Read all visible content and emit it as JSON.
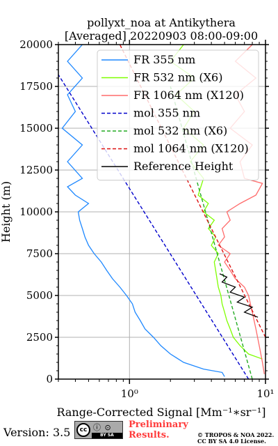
{
  "title_line1": "pollyxt_noa at Antikythera",
  "title_line2": "[Averaged] 20220903 08:00-09:00",
  "footer": {
    "version": "Version: 3.5",
    "cc_label": "cc",
    "cc_strip": "BY  SA",
    "preliminary_line1": "Preliminary",
    "preliminary_line2": "Results.",
    "copyright_line1": "© TROPOS & NOA 2022.",
    "copyright_line2": "CC BY SA 4.0 License."
  },
  "chart_data": {
    "type": "line",
    "xlabel": "Range-Corrected Signal [Mm⁻¹∗sr⁻¹]",
    "ylabel": "Height (m)",
    "x_scale": "log",
    "xlim": [
      0.3,
      10
    ],
    "ylim": [
      0,
      20000
    ],
    "x_ticks": [
      1,
      10
    ],
    "x_tick_labels": [
      "10⁰",
      "10¹"
    ],
    "y_ticks": [
      0,
      2500,
      5000,
      7500,
      10000,
      12500,
      15000,
      17500,
      20000
    ],
    "y_tick_labels": [
      "0",
      "2500",
      "5000",
      "7500",
      "10000",
      "12500",
      "15000",
      "17500",
      "20000"
    ],
    "grid": true,
    "legend_position": "top-right",
    "series": [
      {
        "name": "FR 355 nm",
        "color": "#1e88ff",
        "style": "solid",
        "points": [
          [
            5.0,
            150
          ],
          [
            4.8,
            400
          ],
          [
            3.5,
            600
          ],
          [
            2.5,
            1000
          ],
          [
            2.0,
            1500
          ],
          [
            1.7,
            2000
          ],
          [
            1.5,
            2500
          ],
          [
            1.3,
            3000
          ],
          [
            1.2,
            3500
          ],
          [
            1.1,
            4000
          ],
          [
            1.05,
            4500
          ],
          [
            0.95,
            5000
          ],
          [
            0.85,
            5500
          ],
          [
            0.75,
            6000
          ],
          [
            0.68,
            6500
          ],
          [
            0.62,
            7000
          ],
          [
            0.55,
            7500
          ],
          [
            0.5,
            8000
          ],
          [
            0.47,
            8500
          ],
          [
            0.45,
            9000
          ],
          [
            0.43,
            9500
          ],
          [
            0.42,
            10000
          ],
          [
            0.5,
            10500
          ],
          [
            0.4,
            11000
          ],
          [
            0.35,
            11500
          ],
          [
            0.45,
            12000
          ],
          [
            0.35,
            13000
          ],
          [
            0.45,
            14000
          ],
          [
            0.32,
            15000
          ],
          [
            0.4,
            16000
          ],
          [
            0.35,
            17000
          ],
          [
            0.45,
            18000
          ],
          [
            0.35,
            19000
          ],
          [
            0.45,
            20000
          ]
        ]
      },
      {
        "name": "FR 532 nm (X6)",
        "color": "#7fff00",
        "style": "solid",
        "points": [
          [
            9.5,
            1200
          ],
          [
            7.5,
            1500
          ],
          [
            6.5,
            2000
          ],
          [
            5.8,
            2500
          ],
          [
            5.5,
            3000
          ],
          [
            5.2,
            3500
          ],
          [
            5.0,
            4000
          ],
          [
            4.8,
            4500
          ],
          [
            4.7,
            5000
          ],
          [
            4.5,
            5500
          ],
          [
            4.4,
            6000
          ],
          [
            4.3,
            6500
          ],
          [
            4.2,
            7000
          ],
          [
            4.5,
            7500
          ],
          [
            4.0,
            8000
          ],
          [
            4.3,
            8500
          ],
          [
            3.8,
            9000
          ],
          [
            4.2,
            9500
          ],
          [
            3.5,
            10000
          ],
          [
            3.8,
            10500
          ],
          [
            3.2,
            11000
          ],
          [
            3.5,
            12000
          ],
          [
            2.8,
            13000
          ],
          [
            3.5,
            14000
          ],
          [
            2.5,
            15000
          ],
          [
            3.0,
            16000
          ],
          [
            2.2,
            17000
          ],
          [
            3.0,
            18000
          ],
          [
            2.0,
            19000
          ],
          [
            2.5,
            20000
          ]
        ]
      },
      {
        "name": "FR 1064 nm (X120)",
        "color": "#ff6b6b",
        "style": "solid",
        "points": [
          [
            9.8,
            300
          ],
          [
            9.5,
            1000
          ],
          [
            9.0,
            2000
          ],
          [
            8.5,
            3000
          ],
          [
            8.0,
            4000
          ],
          [
            7.5,
            5000
          ],
          [
            7.0,
            5500
          ],
          [
            6.0,
            6000
          ],
          [
            5.5,
            6500
          ],
          [
            5.0,
            7000
          ],
          [
            5.5,
            7500
          ],
          [
            4.5,
            8000
          ],
          [
            5.0,
            8500
          ],
          [
            4.8,
            9000
          ],
          [
            5.5,
            9500
          ],
          [
            5.2,
            10000
          ],
          [
            6.5,
            10500
          ],
          [
            8.5,
            11000
          ],
          [
            9.5,
            11700
          ],
          [
            7.0,
            12000
          ],
          [
            6.5,
            13000
          ],
          [
            8.0,
            14000
          ],
          [
            5.5,
            15000
          ],
          [
            7.0,
            16000
          ],
          [
            6.0,
            17000
          ],
          [
            8.5,
            18000
          ],
          [
            6.0,
            19000
          ],
          [
            8.0,
            20000
          ]
        ]
      },
      {
        "name": "mol 355 nm",
        "color": "#0000cc",
        "style": "dashed",
        "points": [
          [
            7.5,
            0
          ],
          [
            0.3,
            18200
          ]
        ]
      },
      {
        "name": "mol 532 nm (X6)",
        "color": "#22aa22",
        "style": "dashed",
        "points": [
          [
            8.0,
            0
          ],
          [
            2.0,
            17500
          ]
        ]
      },
      {
        "name": "mol 1064 nm (X120)",
        "color": "#dd1111",
        "style": "dashed",
        "points": [
          [
            10.0,
            2500
          ],
          [
            0.85,
            20000
          ]
        ]
      },
      {
        "name": "Reference Height",
        "color": "#000000",
        "style": "solid",
        "points": [
          [
            8.8,
            3700
          ],
          [
            7.0,
            4000
          ],
          [
            8.0,
            4300
          ],
          [
            6.2,
            4600
          ],
          [
            7.0,
            4900
          ],
          [
            5.5,
            5200
          ],
          [
            6.0,
            5500
          ],
          [
            4.8,
            5800
          ],
          [
            5.2,
            6100
          ],
          [
            4.6,
            6300
          ]
        ]
      }
    ]
  }
}
